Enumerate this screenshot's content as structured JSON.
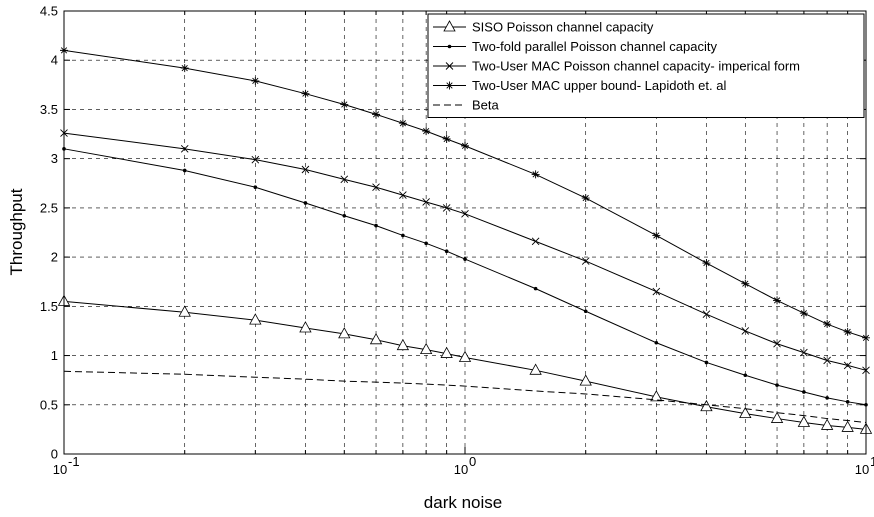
{
  "chart_data": {
    "type": "line",
    "xlabel": "dark noise",
    "ylabel": "Throughput",
    "xscale": "log",
    "xlim": [
      0.1,
      10
    ],
    "ylim": [
      0,
      4.5
    ],
    "grid": true,
    "legend_position": "top-right",
    "x_tick_labels": [
      {
        "x": 0.1,
        "base": "10",
        "exp": "-1"
      },
      {
        "x": 1,
        "base": "10",
        "exp": "0"
      },
      {
        "x": 10,
        "base": "10",
        "exp": "1"
      }
    ],
    "y_ticks": [
      0,
      0.5,
      1,
      1.5,
      2,
      2.5,
      3,
      3.5,
      4,
      4.5
    ],
    "y_tick_labels": [
      "0",
      "0.5",
      "1",
      "1.5",
      "2",
      "2.5",
      "3",
      "3.5",
      "4",
      "4.5"
    ],
    "x": [
      0.1,
      0.2,
      0.3,
      0.4,
      0.5,
      0.6,
      0.7,
      0.8,
      0.9,
      1,
      1.5,
      2,
      3,
      4,
      5,
      6,
      7,
      8,
      9,
      10
    ],
    "series": [
      {
        "name": "SISO Poisson channel capacity",
        "marker": "triangle",
        "values": [
          1.55,
          1.44,
          1.36,
          1.28,
          1.22,
          1.16,
          1.1,
          1.06,
          1.02,
          0.98,
          0.85,
          0.74,
          0.58,
          0.48,
          0.41,
          0.36,
          0.32,
          0.29,
          0.27,
          0.25
        ]
      },
      {
        "name": "Two-fold parallel Poisson channel capacity",
        "marker": "dot",
        "values": [
          3.1,
          2.88,
          2.71,
          2.55,
          2.42,
          2.32,
          2.22,
          2.14,
          2.06,
          1.98,
          1.68,
          1.45,
          1.13,
          0.93,
          0.8,
          0.7,
          0.63,
          0.57,
          0.53,
          0.5
        ]
      },
      {
        "name": "Two-User MAC Poisson channel capacity- imperical form",
        "marker": "x",
        "values": [
          3.26,
          3.1,
          2.99,
          2.89,
          2.79,
          2.71,
          2.63,
          2.56,
          2.5,
          2.44,
          2.16,
          1.96,
          1.65,
          1.42,
          1.25,
          1.12,
          1.03,
          0.95,
          0.9,
          0.85
        ]
      },
      {
        "name": "Two-User MAC upper bound- Lapidoth et. al",
        "marker": "star",
        "values": [
          4.1,
          3.92,
          3.79,
          3.66,
          3.55,
          3.45,
          3.36,
          3.28,
          3.2,
          3.13,
          2.84,
          2.6,
          2.22,
          1.94,
          1.73,
          1.56,
          1.43,
          1.32,
          1.24,
          1.18
        ]
      },
      {
        "name": "Beta",
        "marker": "none",
        "dash": true,
        "values": [
          0.84,
          0.81,
          0.78,
          0.76,
          0.74,
          0.73,
          0.72,
          0.71,
          0.7,
          0.69,
          0.64,
          0.61,
          0.55,
          0.5,
          0.46,
          0.42,
          0.39,
          0.36,
          0.34,
          0.32
        ]
      }
    ]
  }
}
